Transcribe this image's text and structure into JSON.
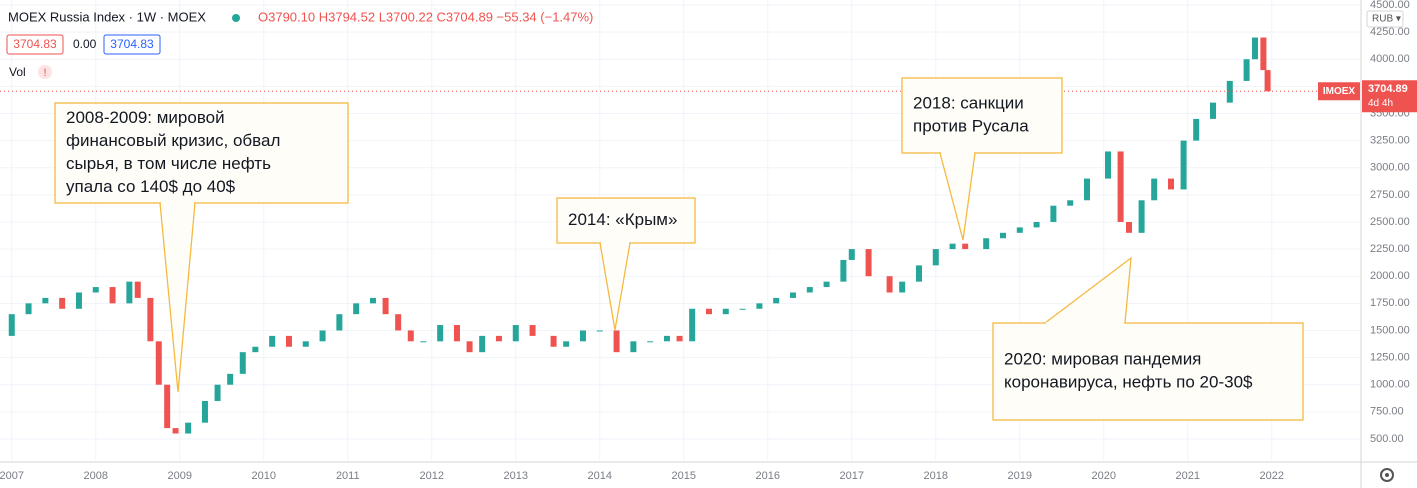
{
  "chart_data": {
    "type": "candlestick",
    "title": "MOEX Russia Index · 1W · MOEX",
    "header": {
      "ohlc": "O3790.10 H3794.52 L3700.22 C3704.89 −55.34 (−1.47%)",
      "bid": "3704.83",
      "spread": "0.00",
      "ask": "3704.83",
      "volume": "Vol",
      "warning": "!",
      "currency": "RUB ▾"
    },
    "last_price": {
      "symbol": "IMOEX",
      "value": 3704.89,
      "label": "3704.89",
      "countdown": "4d 4h"
    },
    "x": [
      2006.86,
      2007.0,
      2007.2,
      2007.4,
      2007.6,
      2007.8,
      2008.0,
      2008.2,
      2008.4,
      2008.5,
      2008.65,
      2008.75,
      2008.85,
      2008.95,
      2009.1,
      2009.3,
      2009.45,
      2009.6,
      2009.75,
      2009.9,
      2010.1,
      2010.3,
      2010.5,
      2010.7,
      2010.9,
      2011.1,
      2011.3,
      2011.45,
      2011.6,
      2011.75,
      2011.9,
      2012.1,
      2012.3,
      2012.45,
      2012.6,
      2012.8,
      2013.0,
      2013.2,
      2013.45,
      2013.6,
      2013.8,
      2014.0,
      2014.2,
      2014.4,
      2014.6,
      2014.8,
      2014.95,
      2015.1,
      2015.3,
      2015.5,
      2015.7,
      2015.9,
      2016.1,
      2016.3,
      2016.5,
      2016.7,
      2016.9,
      2017.0,
      2017.2,
      2017.45,
      2017.6,
      2017.8,
      2018.0,
      2018.2,
      2018.35,
      2018.6,
      2018.8,
      2019.0,
      2019.2,
      2019.4,
      2019.6,
      2019.8,
      2020.05,
      2020.2,
      2020.3,
      2020.45,
      2020.6,
      2020.8,
      2020.95,
      2021.1,
      2021.3,
      2021.5,
      2021.7,
      2021.8,
      2021.9,
      2021.95
    ],
    "values": [
      1450,
      1650,
      1750,
      1800,
      1700,
      1850,
      1900,
      1750,
      1950,
      1800,
      1400,
      1000,
      600,
      550,
      650,
      850,
      1000,
      1100,
      1300,
      1350,
      1450,
      1350,
      1400,
      1500,
      1650,
      1750,
      1800,
      1650,
      1500,
      1400,
      1400,
      1550,
      1400,
      1300,
      1450,
      1400,
      1550,
      1450,
      1350,
      1400,
      1500,
      1500,
      1300,
      1400,
      1400,
      1450,
      1400,
      1700,
      1650,
      1700,
      1700,
      1750,
      1800,
      1850,
      1900,
      1950,
      2150,
      2250,
      2000,
      1850,
      1950,
      2100,
      2250,
      2300,
      2250,
      2350,
      2400,
      2450,
      2500,
      2650,
      2700,
      2900,
      3150,
      2500,
      2400,
      2700,
      2900,
      2800,
      3250,
      3450,
      3600,
      3800,
      4000,
      4200,
      3900,
      3704.89
    ],
    "up_color": "#26a69a",
    "down_color": "#ef5350",
    "xlim": [
      2006.86,
      2023.05
    ],
    "xticks": [
      2007,
      2008,
      2009,
      2010,
      2011,
      2012,
      2013,
      2014,
      2015,
      2016,
      2017,
      2018,
      2019,
      2020,
      2021,
      2022
    ],
    "ylim": [
      306,
      4546
    ],
    "yticks": [
      {
        "value": 500,
        "label": "500.00"
      },
      {
        "value": 750,
        "label": "750.00"
      },
      {
        "value": 1000,
        "label": "1000.00"
      },
      {
        "value": 1250,
        "label": "1250.00"
      },
      {
        "value": 1500,
        "label": "1500.00"
      },
      {
        "value": 1750,
        "label": "1750.00"
      },
      {
        "value": 2000,
        "label": "2000.00"
      },
      {
        "value": 2250,
        "label": "2250.00"
      },
      {
        "value": 2500,
        "label": "2500.00"
      },
      {
        "value": 2750,
        "label": "2750.00"
      },
      {
        "value": 3000,
        "label": "3000.00"
      },
      {
        "value": 3250,
        "label": "3250.00"
      },
      {
        "value": 3500,
        "label": "3500.00"
      },
      {
        "value": 3750,
        "label": "3750.00"
      },
      {
        "value": 4000,
        "label": "4000.00"
      },
      {
        "value": 4250,
        "label": "4250.00"
      },
      {
        "value": 4500,
        "label": "4500.00"
      }
    ],
    "grid": true,
    "annotations": [
      {
        "lines": [
          "2008-2009: мировой",
          "финансовый кризис, обвал",
          "сырья, в том числе нефть",
          "упала со 140$ до 40$"
        ]
      },
      {
        "lines": [
          "2014: «Крым»"
        ]
      },
      {
        "lines": [
          "2018: санкции",
          "против Русала"
        ]
      },
      {
        "lines": [
          "2020: мировая пандемия",
          "коронавируса, нефть по 20-30$"
        ]
      }
    ]
  }
}
